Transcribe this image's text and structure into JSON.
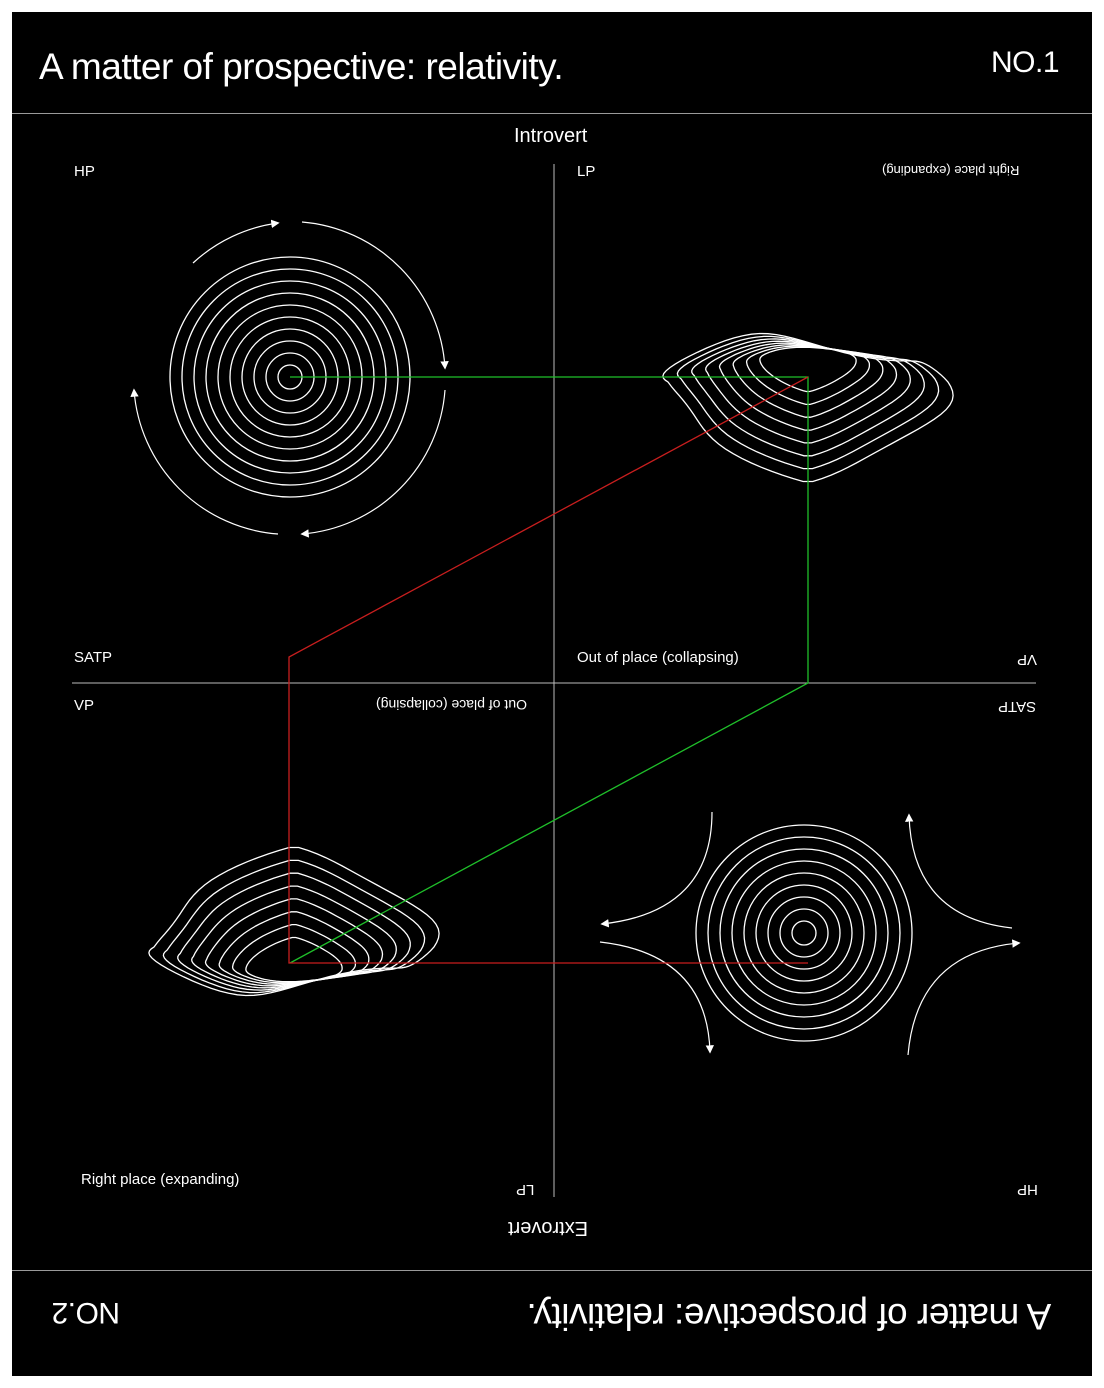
{
  "header": {
    "title": "A matter of prospective: relativity.",
    "number": "NO.1"
  },
  "footer": {
    "title": "A matter of prospective: relativity.",
    "number": "NO.2"
  },
  "axes": {
    "top": "Introvert",
    "bottom": "Extrovert"
  },
  "labels": {
    "hp_top": "HP",
    "lp_top": "LP",
    "right_place_flipped": "Right place (expanding)",
    "satp_left": "SATP",
    "out_of_place": "Out of place (collapsing)",
    "vp_right_flipped": "VP",
    "vp_left": "VP",
    "out_of_place_flipped": "Out of place (collapsing)",
    "satp_right_flipped": "SATP",
    "right_place": "Right place (expanding)",
    "lp_bottom_flipped": "LP",
    "hp_bottom_flipped": "HP"
  },
  "colors": {
    "background": "#000000",
    "ink": "#ffffff",
    "green_path": "#1fbf2a",
    "red_path": "#c81e1e"
  }
}
